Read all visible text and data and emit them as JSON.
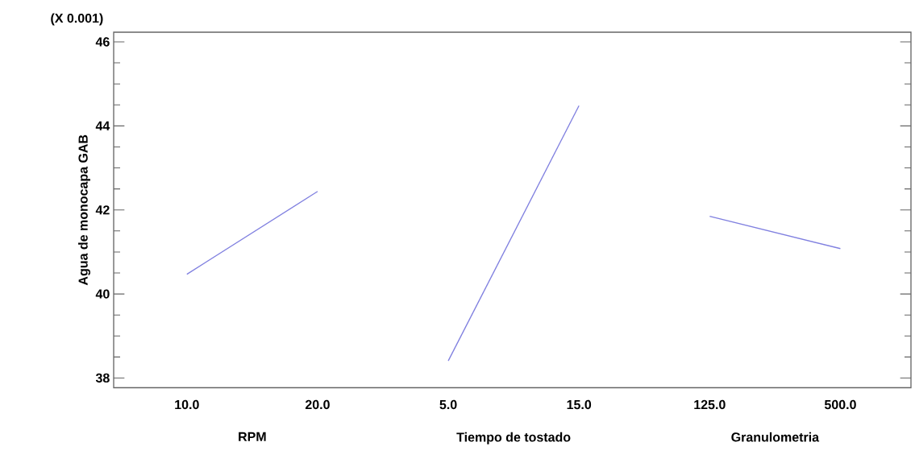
{
  "chart_data": {
    "type": "line",
    "ylabel": "Agua de monocapa GAB",
    "categories": [
      "10.0",
      "20.0",
      "5.0",
      "15.0",
      "125.0",
      "500.0"
    ],
    "series": [
      {
        "color": "#8080e0",
        "values": [
          40.47,
          42.44,
          null,
          null,
          null,
          null
        ]
      },
      {
        "color": "#8080e0",
        "values": [
          null,
          null,
          38.41,
          44.48,
          null,
          null
        ]
      },
      {
        "color": "#8080e0",
        "values": [
          null,
          null,
          null,
          null,
          41.85,
          41.08
        ]
      }
    ],
    "ylim": [
      37.77,
      46.23
    ],
    "yticks": [
      38,
      40,
      42,
      44,
      46
    ],
    "annotations": [
      "(X 0.001)",
      "RPM",
      "Tiempo de tostado",
      "Granulometria"
    ],
    "grid": false,
    "marker": "none"
  }
}
